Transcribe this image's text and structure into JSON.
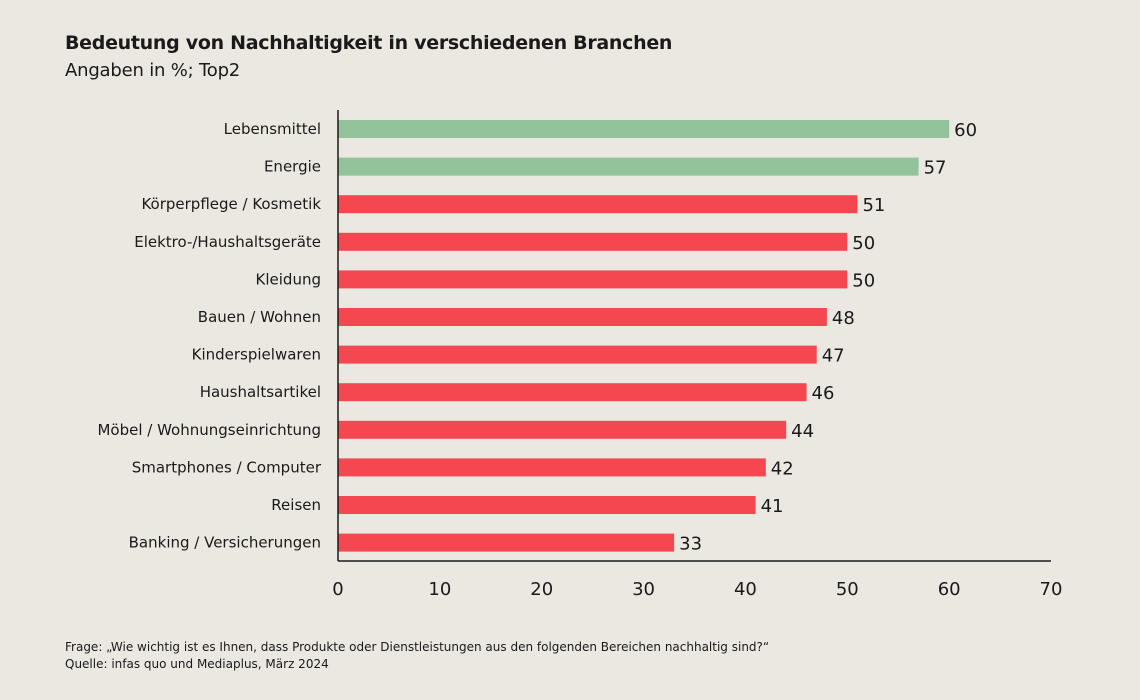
{
  "title": "Bedeutung von Nachhaltigkeit in verschiedenen Branchen",
  "subtitle": "Angaben in %; Top2",
  "footnote_question": "Frage: „Wie wichtig ist es Ihnen, dass Produkte oder Dienstleistungen aus den folgenden Bereichen nachhaltig sind?“",
  "footnote_source": "Quelle: infas quo und Mediaplus, März 2024",
  "colors": {
    "highlight": "#93c39a",
    "default": "#f4474f",
    "background": "#ebe8e2",
    "axis": "#1a1a1a"
  },
  "chart_data": {
    "type": "bar",
    "orientation": "horizontal",
    "categories": [
      "Lebensmittel",
      "Energie",
      "Körperpflege / Kosmetik",
      "Elektro-/Haushaltsgeräte",
      "Kleidung",
      "Bauen / Wohnen",
      "Kinderspielwaren",
      "Haushaltsartikel",
      "Möbel / Wohnungseinrichtung",
      "Smartphones / Computer",
      "Reisen",
      "Banking / Versicherungen"
    ],
    "values": [
      60,
      57,
      51,
      50,
      50,
      48,
      47,
      46,
      44,
      42,
      41,
      33
    ],
    "highlighted": [
      true,
      true,
      false,
      false,
      false,
      false,
      false,
      false,
      false,
      false,
      false,
      false
    ],
    "xlim": [
      0,
      70
    ],
    "xticks": [
      0,
      10,
      20,
      30,
      40,
      50,
      60,
      70
    ],
    "grid": false,
    "legend": false,
    "data_labels": true
  }
}
